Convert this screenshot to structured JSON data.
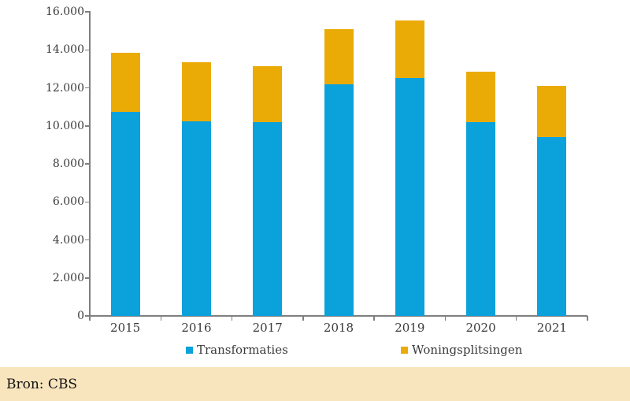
{
  "chart_data": {
    "type": "bar",
    "stacked": true,
    "categories": [
      "2015",
      "2016",
      "2017",
      "2018",
      "2019",
      "2020",
      "2021"
    ],
    "series": [
      {
        "name": "Transformaties",
        "color": "#0ba1db",
        "values": [
          10750,
          10250,
          10200,
          12200,
          12500,
          10200,
          9400
        ]
      },
      {
        "name": "Woningsplitsingen",
        "color": "#eaab07",
        "values": [
          3100,
          3100,
          2950,
          2900,
          3050,
          2650,
          2700
        ]
      }
    ],
    "title": "",
    "xlabel": "",
    "ylabel": "",
    "ylim": [
      0,
      16000
    ],
    "ytick_interval": 2000,
    "ytick_labels": [
      "0",
      "2.000",
      "4.000",
      "6.000",
      "8.000",
      "10.000",
      "12.000",
      "14.000",
      "16.000"
    ],
    "grid": false,
    "legend_position": "bottom"
  },
  "colors": {
    "axis": "#7f7f7f",
    "label_text": "#3a3a3a",
    "source_bar_background": "#f8e4bd"
  },
  "source_bar": {
    "text": "Bron: CBS"
  }
}
